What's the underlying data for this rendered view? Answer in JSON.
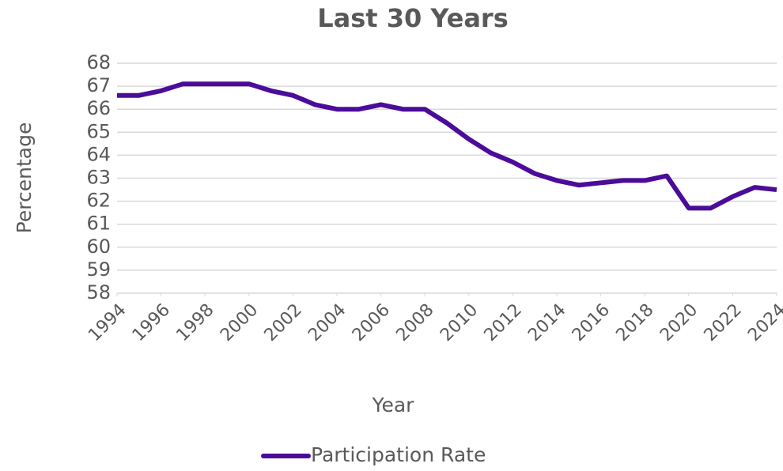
{
  "chart_data": {
    "type": "line",
    "title": "Last 30 Years",
    "xlabel": "Year",
    "ylabel": "Percentage",
    "x": [
      1994,
      1995,
      1996,
      1997,
      1998,
      1999,
      2000,
      2001,
      2002,
      2003,
      2004,
      2005,
      2006,
      2007,
      2008,
      2009,
      2010,
      2011,
      2012,
      2013,
      2014,
      2015,
      2016,
      2017,
      2018,
      2019,
      2020,
      2021,
      2022,
      2023,
      2024
    ],
    "series": [
      {
        "name": "Participation Rate",
        "color": "#4b0c9a",
        "values": [
          66.6,
          66.6,
          66.8,
          67.1,
          67.1,
          67.1,
          67.1,
          66.8,
          66.6,
          66.2,
          66.0,
          66.0,
          66.2,
          66.0,
          66.0,
          65.4,
          64.7,
          64.1,
          63.7,
          63.2,
          62.9,
          62.7,
          62.8,
          62.9,
          62.9,
          63.1,
          61.7,
          61.7,
          62.2,
          62.6,
          62.5
        ]
      }
    ],
    "xlim": [
      1994,
      2024
    ],
    "xticks": [
      1994,
      1996,
      1998,
      2000,
      2002,
      2004,
      2006,
      2008,
      2010,
      2012,
      2014,
      2016,
      2018,
      2020,
      2022,
      2024
    ],
    "ylim": [
      58,
      68
    ],
    "yticks": [
      58,
      59,
      60,
      61,
      62,
      63,
      64,
      65,
      66,
      67,
      68
    ],
    "grid": true,
    "legend": "bottom"
  }
}
